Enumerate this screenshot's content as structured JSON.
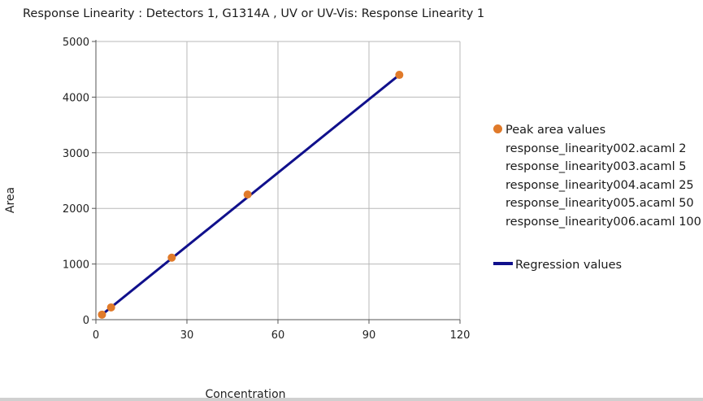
{
  "chart_data": {
    "type": "scatter",
    "title": "Response Linearity : Detectors 1, G1314A , UV or UV-Vis: Response Linearity 1",
    "xlabel": "Concentration",
    "ylabel": "Area",
    "xlim": [
      0,
      120
    ],
    "ylim": [
      0,
      5000
    ],
    "x_ticks": [
      "0",
      "30",
      "60",
      "90",
      "120"
    ],
    "y_ticks": [
      "0",
      "1000",
      "2000",
      "3000",
      "4000",
      "5000"
    ],
    "grid": true,
    "legend_position": "right",
    "series": [
      {
        "name": "Peak area values",
        "kind": "points",
        "color": "#e07a2a",
        "x": [
          2,
          5,
          25,
          50,
          100
        ],
        "y": [
          90,
          220,
          1115,
          2250,
          4400
        ]
      },
      {
        "name": "Regression values",
        "kind": "line",
        "color": "#10108c",
        "x": [
          2,
          100
        ],
        "y": [
          90,
          4400
        ]
      }
    ],
    "legend_entries": [
      "response_linearity002.acaml 2",
      "response_linearity003.acaml 5",
      "response_linearity004.acaml 25",
      "response_linearity005.acaml 50",
      "response_linearity006.acaml 100"
    ]
  }
}
